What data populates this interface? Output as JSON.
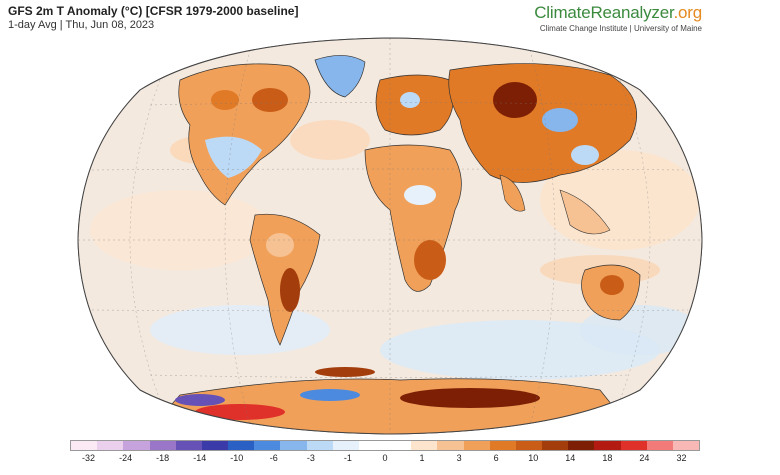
{
  "header": {
    "title": "GFS 2m T Anomaly (°C) [CFSR 1979-2000 baseline]",
    "subtitle": "1-day Avg | Thu, Jun 08, 2023"
  },
  "brand": {
    "name_main": "ClimateReanalyzer",
    "name_suffix": ".org",
    "tagline": "Climate Change Institute | University of Maine"
  },
  "legend": {
    "colors": [
      "#fbeaf3",
      "#ead0ec",
      "#c7a3dd",
      "#9a76c8",
      "#6652b6",
      "#3a3aa8",
      "#2a5fc4",
      "#4c8ae0",
      "#86b6ec",
      "#bcd9f5",
      "#e6f1fb",
      "#ffffff",
      "#ffffff",
      "#fde4cc",
      "#f7c293",
      "#f1a059",
      "#e07a27",
      "#c95d18",
      "#a33d0c",
      "#7d1f05",
      "#b31a12",
      "#e0302a",
      "#f27a78",
      "#f8b8b6"
    ],
    "tick_labels": [
      "-32",
      "-24",
      "-18",
      "-14",
      "-10",
      "-6",
      "-3",
      "-1",
      "0",
      "1",
      "3",
      "6",
      "10",
      "14",
      "18",
      "24",
      "32"
    ]
  },
  "map": {
    "projection": "Robinson",
    "ocean_color": "#f3ece6"
  }
}
